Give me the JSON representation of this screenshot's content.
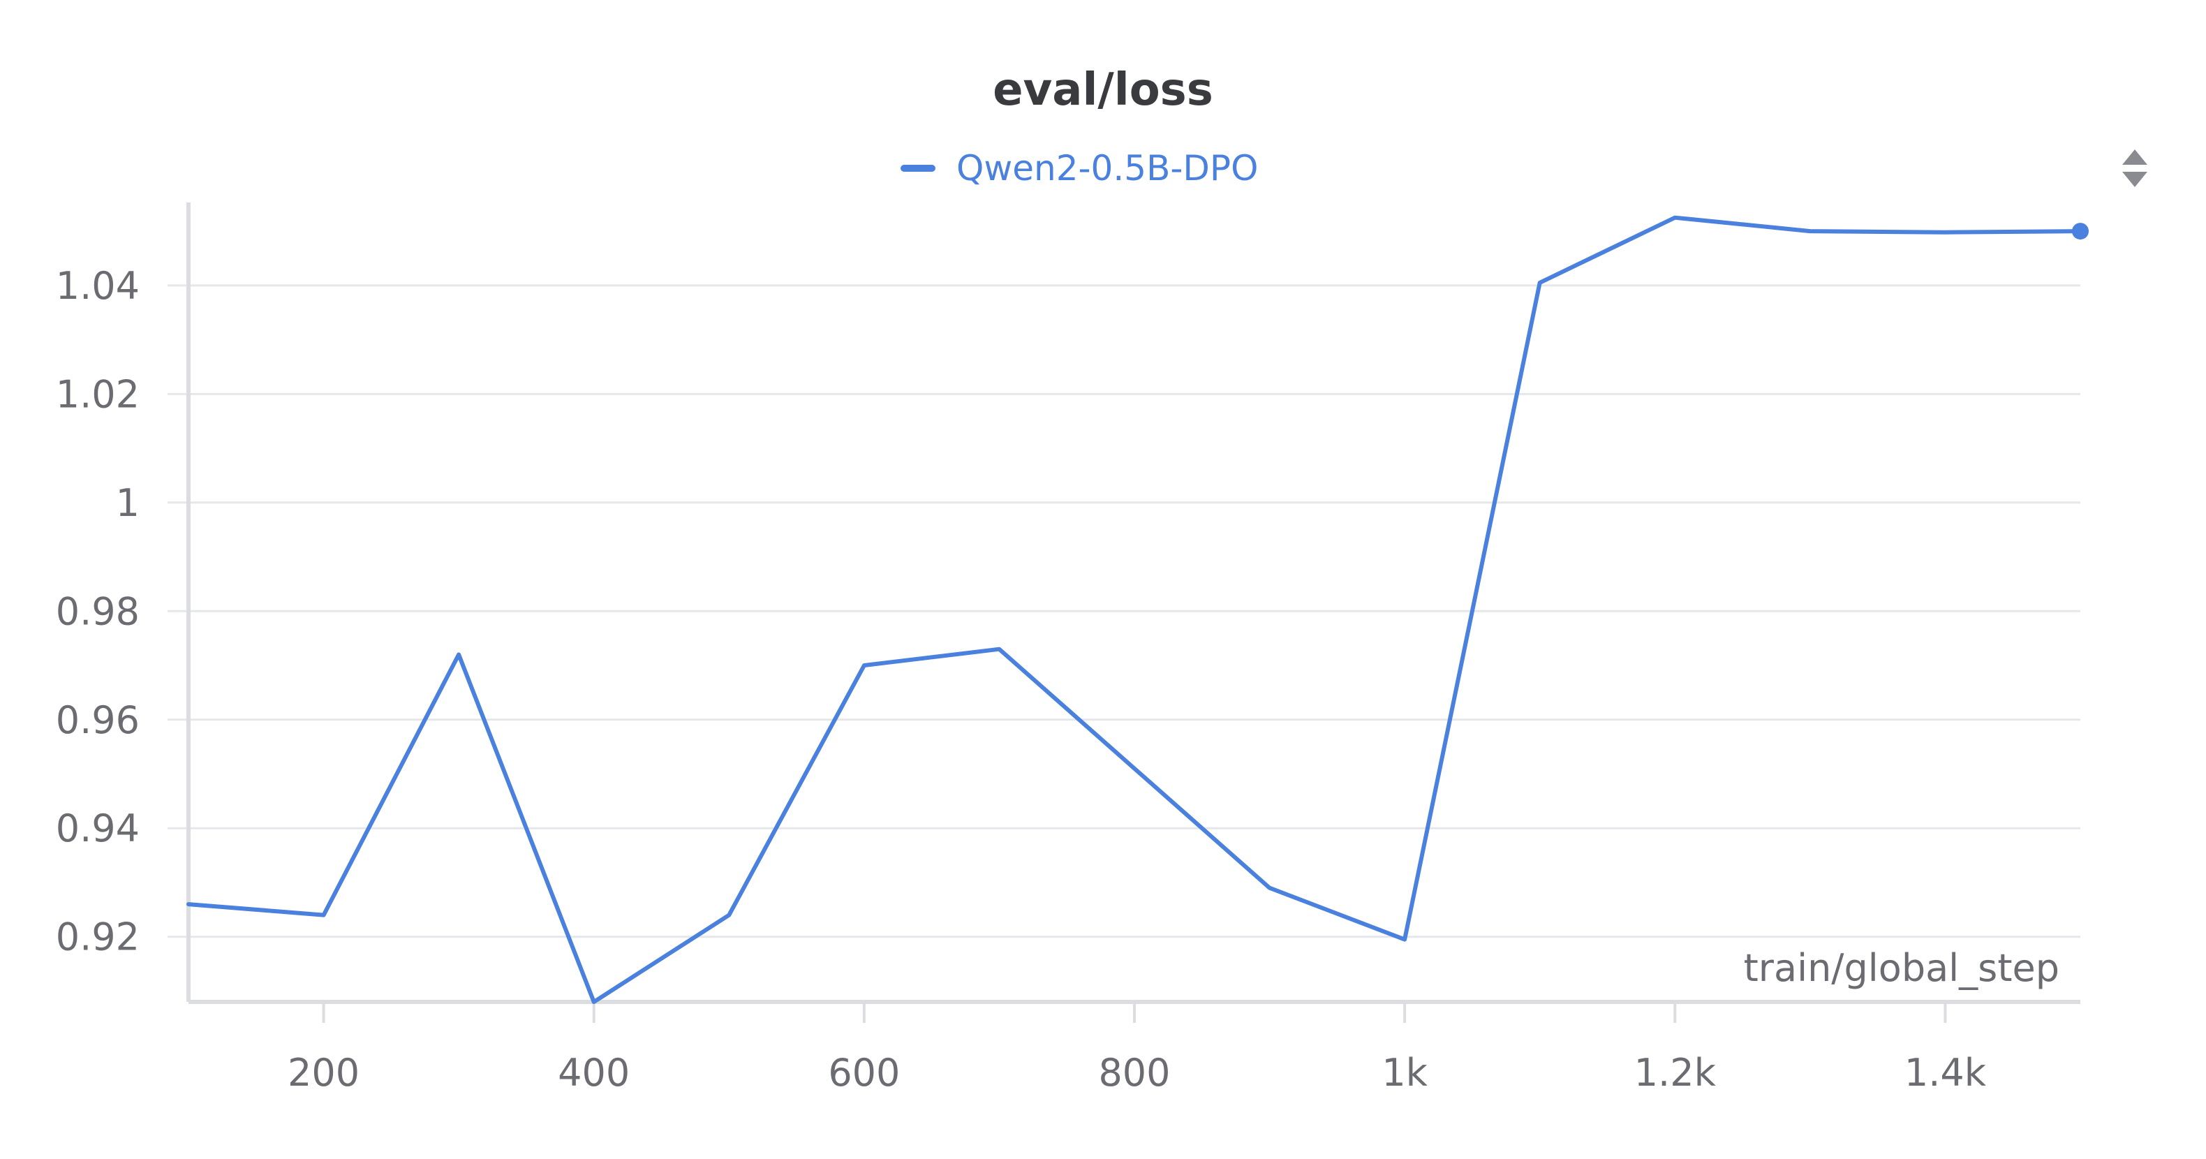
{
  "chart_data": {
    "type": "line",
    "title": "eval/loss",
    "xlabel": "train/global_step",
    "ylabel": "",
    "xlim": [
      100,
      1500
    ],
    "ylim": [
      0.908,
      1.054
    ],
    "x_ticks": [
      200,
      400,
      600,
      800,
      1000,
      1200,
      1400
    ],
    "x_tick_labels": [
      "200",
      "400",
      "600",
      "800",
      "1k",
      "1.2k",
      "1.4k"
    ],
    "y_ticks": [
      0.92,
      0.94,
      0.96,
      0.98,
      1.0,
      1.02,
      1.04
    ],
    "y_tick_labels": [
      "0.92",
      "0.94",
      "0.96",
      "0.98",
      "1",
      "1.02",
      "1.04"
    ],
    "grid": true,
    "legend_position": "top-center",
    "series": [
      {
        "name": "Qwen2-0.5B-DPO",
        "color": "#4a80de",
        "x": [
          100,
          200,
          300,
          400,
          500,
          600,
          700,
          800,
          900,
          1000,
          1100,
          1200,
          1300,
          1400,
          1500
        ],
        "y": [
          0.926,
          0.924,
          0.972,
          0.908,
          0.924,
          0.97,
          0.973,
          0.951,
          0.929,
          0.9195,
          1.0405,
          1.0525,
          1.05,
          1.0498,
          1.05
        ]
      }
    ]
  },
  "menu_icon": "sort-arrows-icon",
  "colors": {
    "grid": "#e6e7ea",
    "axis": "#dcdde0",
    "text": "#6b6c72",
    "title": "#3a3b3f",
    "menu": "#8a8b90"
  }
}
